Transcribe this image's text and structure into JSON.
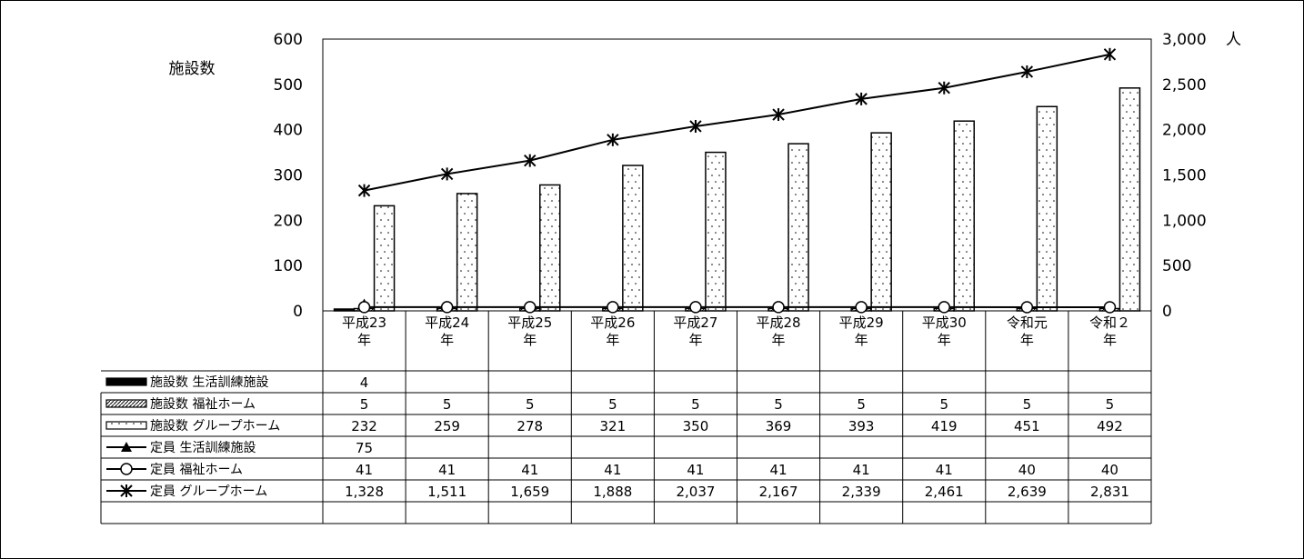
{
  "chart_data": {
    "type": "bar",
    "categories": [
      [
        "平成23",
        "年"
      ],
      [
        "平成24",
        "年"
      ],
      [
        "平成25",
        "年"
      ],
      [
        "平成26",
        "年"
      ],
      [
        "平成27",
        "年"
      ],
      [
        "平成28",
        "年"
      ],
      [
        "平成29",
        "年"
      ],
      [
        "平成30",
        "年"
      ],
      [
        "令和元",
        "年"
      ],
      [
        "令和２",
        "年"
      ]
    ],
    "left_axis": {
      "label": "施設数",
      "min": 0,
      "max": 600,
      "ticks": [
        {
          "v": 0,
          "t": "0"
        },
        {
          "v": 100,
          "t": "100"
        },
        {
          "v": 200,
          "t": "200"
        },
        {
          "v": 300,
          "t": "300"
        },
        {
          "v": 400,
          "t": "400"
        },
        {
          "v": 500,
          "t": "500"
        },
        {
          "v": 600,
          "t": "600"
        }
      ]
    },
    "right_axis": {
      "label": "人",
      "min": 0,
      "max": 3000,
      "ticks": [
        {
          "v": 0,
          "t": "0"
        },
        {
          "v": 500,
          "t": "500"
        },
        {
          "v": 1000,
          "t": "1,000"
        },
        {
          "v": 1500,
          "t": "1,500"
        },
        {
          "v": 2000,
          "t": "2,000"
        },
        {
          "v": 2500,
          "t": "2,500"
        },
        {
          "v": 3000,
          "t": "3,000"
        }
      ]
    },
    "series": [
      {
        "name": "施設数 生活訓練施設",
        "kind": "bar",
        "axis": "left",
        "fill": "solid",
        "values": [
          4,
          null,
          null,
          null,
          null,
          null,
          null,
          null,
          null,
          null
        ],
        "labels": [
          "4",
          "",
          "",
          "",
          "",
          "",
          "",
          "",
          "",
          ""
        ]
      },
      {
        "name": "施設数 福祉ホーム",
        "kind": "bar",
        "axis": "left",
        "fill": "hatched",
        "values": [
          5,
          5,
          5,
          5,
          5,
          5,
          5,
          5,
          5,
          5
        ],
        "labels": [
          "5",
          "5",
          "5",
          "5",
          "5",
          "5",
          "5",
          "5",
          "5",
          "5"
        ]
      },
      {
        "name": "施設数 グループホーム",
        "kind": "bar",
        "axis": "left",
        "fill": "dotted",
        "values": [
          232,
          259,
          278,
          321,
          350,
          369,
          393,
          419,
          451,
          492
        ],
        "labels": [
          "232",
          "259",
          "278",
          "321",
          "350",
          "369",
          "393",
          "419",
          "451",
          "492"
        ]
      },
      {
        "name": "定員 生活訓練施設",
        "kind": "line",
        "axis": "right",
        "marker": "triangle",
        "values": [
          75,
          null,
          null,
          null,
          null,
          null,
          null,
          null,
          null,
          null
        ],
        "labels": [
          "75",
          "",
          "",
          "",
          "",
          "",
          "",
          "",
          "",
          ""
        ]
      },
      {
        "name": "定員 福祉ホーム",
        "kind": "line",
        "axis": "right",
        "marker": "circle",
        "values": [
          41,
          41,
          41,
          41,
          41,
          41,
          41,
          41,
          40,
          40
        ],
        "labels": [
          "41",
          "41",
          "41",
          "41",
          "41",
          "41",
          "41",
          "41",
          "40",
          "40"
        ]
      },
      {
        "name": "定員 グループホーム",
        "kind": "line",
        "axis": "right",
        "marker": "star",
        "values": [
          1328,
          1511,
          1659,
          1888,
          2037,
          2167,
          2339,
          2461,
          2639,
          2831
        ],
        "labels": [
          "1,328",
          "1,511",
          "1,659",
          "1,888",
          "2,037",
          "2,167",
          "2,339",
          "2,461",
          "2,639",
          "2,831"
        ]
      }
    ],
    "colors": {
      "ink": "#000000",
      "paper": "#ffffff"
    }
  }
}
